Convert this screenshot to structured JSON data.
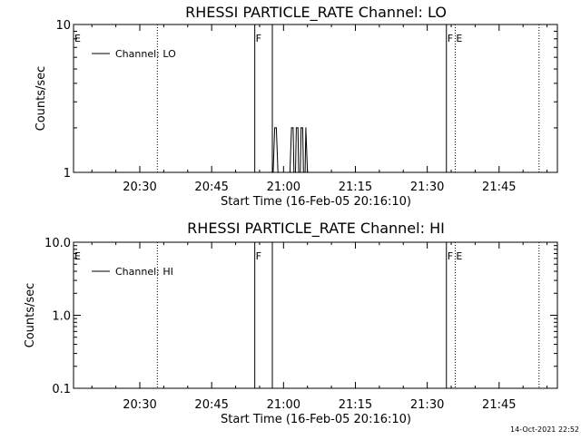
{
  "footer": {
    "timestamp": "14-Oct-2021 22:52"
  },
  "chart_data": [
    {
      "type": "line",
      "title": "RHESSI PARTICLE_RATE Channel: LO",
      "xlabel": "Start Time (16-Feb-05 20:16:10)",
      "ylabel": "Counts/sec",
      "yscale": "log",
      "ylim": [
        1,
        10
      ],
      "y_ticks": [
        1,
        10
      ],
      "y_tick_labels": [
        "1",
        "10"
      ],
      "xlim": [
        "20:16:10",
        "21:57:10"
      ],
      "x_ticks": [
        "20:30",
        "20:45",
        "21:00",
        "21:15",
        "21:30",
        "21:45"
      ],
      "grid": false,
      "legend": {
        "position": "top-left",
        "entries": [
          "Channel: LO"
        ]
      },
      "series": [
        {
          "name": "Channel: LO",
          "x": [
            "20:57:30",
            "20:57:50",
            "20:58:10",
            "20:58:30",
            "20:58:50",
            "20:59:10",
            "21:01:00",
            "21:01:20",
            "21:01:40",
            "21:02:00",
            "21:02:10",
            "21:02:30",
            "21:02:40",
            "21:03:00",
            "21:03:10",
            "21:03:30",
            "21:03:40",
            "21:04:00",
            "21:04:10",
            "21:04:30",
            "21:04:40",
            "21:05:00"
          ],
          "values": [
            1,
            1,
            2,
            2,
            1,
            1,
            1,
            1,
            2,
            2,
            1,
            1,
            2,
            2,
            1,
            1,
            2,
            2,
            1,
            1,
            2,
            1
          ]
        }
      ],
      "vertical_markers": [
        {
          "time": "20:16:10",
          "flag": "E",
          "style": "solid"
        },
        {
          "time": "20:33:40",
          "flag": "",
          "style": "dotted"
        },
        {
          "time": "20:54:00",
          "flag": "F",
          "style": "solid"
        },
        {
          "time": "20:57:40",
          "flag": "",
          "style": "solid"
        },
        {
          "time": "21:34:00",
          "flag": "F",
          "style": "solid"
        },
        {
          "time": "21:35:50",
          "flag": "E",
          "style": "dotted"
        },
        {
          "time": "21:53:20",
          "flag": "",
          "style": "dotted"
        }
      ]
    },
    {
      "type": "line",
      "title": "RHESSI PARTICLE_RATE Channel: HI",
      "xlabel": "Start Time (16-Feb-05 20:16:10)",
      "ylabel": "Counts/sec",
      "yscale": "log",
      "ylim": [
        0.1,
        10
      ],
      "y_ticks": [
        0.1,
        1,
        10
      ],
      "y_tick_labels": [
        "0.1",
        "1.0",
        "10.0"
      ],
      "xlim": [
        "20:16:10",
        "21:57:10"
      ],
      "x_ticks": [
        "20:30",
        "20:45",
        "21:00",
        "21:15",
        "21:30",
        "21:45"
      ],
      "grid": false,
      "legend": {
        "position": "top-left",
        "entries": [
          "Channel: HI"
        ]
      },
      "series": [
        {
          "name": "Channel: HI",
          "x": [],
          "values": []
        }
      ],
      "vertical_markers": [
        {
          "time": "20:16:10",
          "flag": "E",
          "style": "solid"
        },
        {
          "time": "20:33:40",
          "flag": "",
          "style": "dotted"
        },
        {
          "time": "20:54:00",
          "flag": "F",
          "style": "solid"
        },
        {
          "time": "20:57:40",
          "flag": "",
          "style": "solid"
        },
        {
          "time": "21:34:00",
          "flag": "F",
          "style": "solid"
        },
        {
          "time": "21:35:50",
          "flag": "E",
          "style": "dotted"
        },
        {
          "time": "21:53:20",
          "flag": "",
          "style": "dotted"
        }
      ]
    }
  ]
}
